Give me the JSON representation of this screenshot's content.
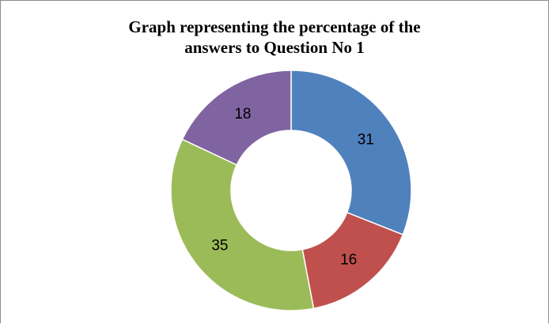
{
  "chart_data": {
    "type": "pie",
    "variant": "doughnut",
    "title_lines": [
      "Graph representing the percentage of the",
      "answers to Question No 1"
    ],
    "categories": [
      "",
      "",
      "",
      ""
    ],
    "values": [
      31,
      16,
      35,
      18
    ],
    "data_labels": [
      "31",
      "16",
      "35",
      "18"
    ],
    "colors": [
      "#4f81bd",
      "#c0504d",
      "#9bbb59",
      "#8064a2"
    ],
    "legend": "none",
    "start_angle_deg": 0,
    "direction": "clockwise"
  }
}
